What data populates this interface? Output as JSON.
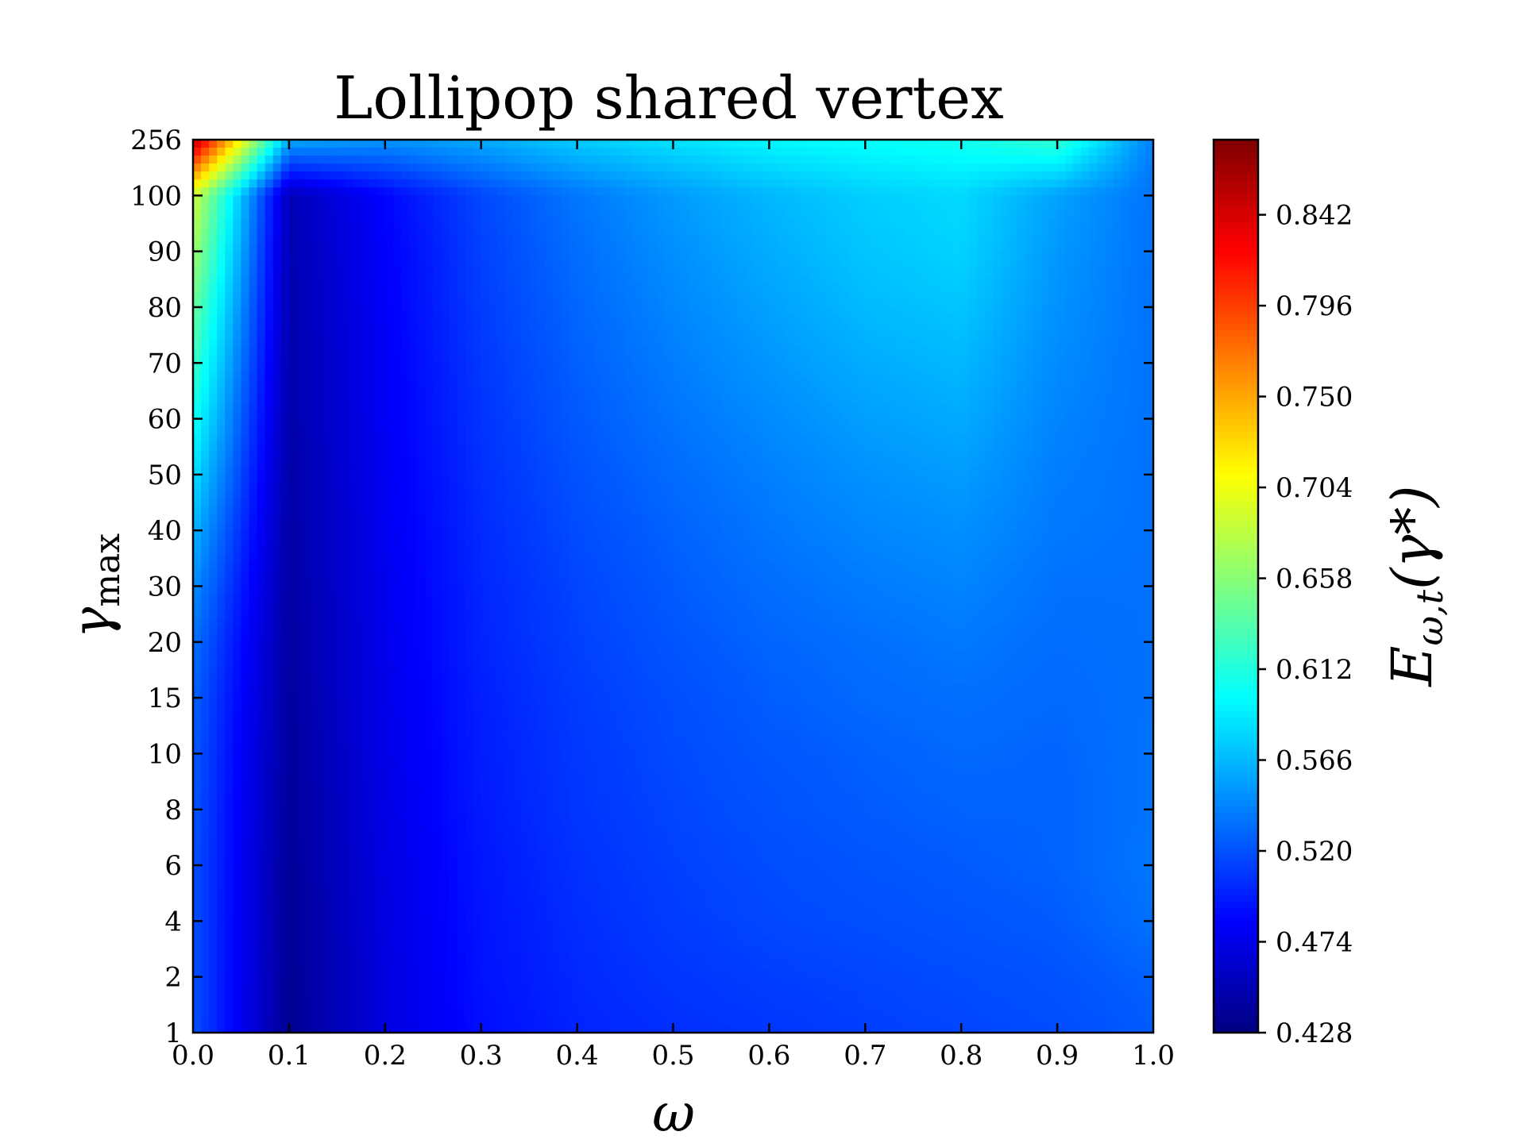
{
  "chart_data": {
    "type": "heatmap",
    "title": "Lollipop shared vertex",
    "xlabel": "ω",
    "ylabel": "γ",
    "ylabel_sub": "max",
    "colorbar_label": "E",
    "colorbar_label_sub": "ω,t",
    "colorbar_label_arg": "(γ*)",
    "colormap": "jet",
    "x": [
      0.0,
      0.1,
      0.2,
      0.3,
      0.4,
      0.5,
      0.6,
      0.7,
      0.8,
      0.9,
      1.0
    ],
    "x_tick_labels": [
      "0.0",
      "0.1",
      "0.2",
      "0.3",
      "0.4",
      "0.5",
      "0.6",
      "0.7",
      "0.8",
      "0.9",
      "1.0"
    ],
    "y_tick_labels": [
      "1",
      "2",
      "4",
      "6",
      "8",
      "10",
      "15",
      "20",
      "30",
      "40",
      "50",
      "60",
      "70",
      "80",
      "90",
      "100",
      "256"
    ],
    "z": [
      [
        0.52,
        0.436,
        0.47,
        0.49,
        0.5,
        0.505,
        0.508,
        0.512,
        0.515,
        0.518,
        0.525
      ],
      [
        0.52,
        0.437,
        0.47,
        0.492,
        0.502,
        0.508,
        0.512,
        0.515,
        0.518,
        0.521,
        0.528
      ],
      [
        0.52,
        0.438,
        0.471,
        0.493,
        0.504,
        0.511,
        0.516,
        0.519,
        0.522,
        0.525,
        0.535
      ],
      [
        0.52,
        0.439,
        0.472,
        0.494,
        0.506,
        0.513,
        0.518,
        0.522,
        0.525,
        0.528,
        0.537
      ],
      [
        0.522,
        0.44,
        0.473,
        0.496,
        0.508,
        0.515,
        0.521,
        0.525,
        0.528,
        0.528,
        0.536
      ],
      [
        0.524,
        0.441,
        0.474,
        0.497,
        0.509,
        0.517,
        0.523,
        0.527,
        0.531,
        0.529,
        0.536
      ],
      [
        0.528,
        0.442,
        0.475,
        0.498,
        0.511,
        0.519,
        0.526,
        0.531,
        0.534,
        0.531,
        0.535
      ],
      [
        0.535,
        0.443,
        0.476,
        0.5,
        0.513,
        0.522,
        0.529,
        0.534,
        0.538,
        0.533,
        0.535
      ],
      [
        0.548,
        0.444,
        0.477,
        0.501,
        0.515,
        0.525,
        0.533,
        0.539,
        0.543,
        0.535,
        0.535
      ],
      [
        0.565,
        0.445,
        0.478,
        0.503,
        0.518,
        0.528,
        0.537,
        0.544,
        0.548,
        0.538,
        0.535
      ],
      [
        0.585,
        0.446,
        0.479,
        0.505,
        0.521,
        0.532,
        0.541,
        0.549,
        0.554,
        0.54,
        0.535
      ],
      [
        0.605,
        0.447,
        0.48,
        0.507,
        0.524,
        0.536,
        0.546,
        0.555,
        0.56,
        0.543,
        0.535
      ],
      [
        0.625,
        0.448,
        0.481,
        0.509,
        0.527,
        0.54,
        0.551,
        0.561,
        0.566,
        0.546,
        0.535
      ],
      [
        0.645,
        0.449,
        0.482,
        0.511,
        0.53,
        0.544,
        0.556,
        0.567,
        0.572,
        0.549,
        0.535
      ],
      [
        0.668,
        0.45,
        0.483,
        0.513,
        0.533,
        0.548,
        0.561,
        0.572,
        0.578,
        0.552,
        0.535
      ],
      [
        0.69,
        0.452,
        0.486,
        0.516,
        0.537,
        0.553,
        0.566,
        0.576,
        0.581,
        0.556,
        0.535
      ],
      [
        0.86,
        0.56,
        0.55,
        0.56,
        0.575,
        0.585,
        0.595,
        0.6,
        0.605,
        0.62,
        0.54
      ]
    ],
    "zlim": [
      0.428,
      0.88
    ],
    "colorbar_ticks": [
      0.428,
      0.474,
      0.52,
      0.566,
      0.612,
      0.658,
      0.704,
      0.75,
      0.796,
      0.842
    ],
    "colorbar_tick_labels": [
      "0.428",
      "0.474",
      "0.520",
      "0.566",
      "0.612",
      "0.658",
      "0.704",
      "0.750",
      "0.796",
      "0.842"
    ]
  }
}
